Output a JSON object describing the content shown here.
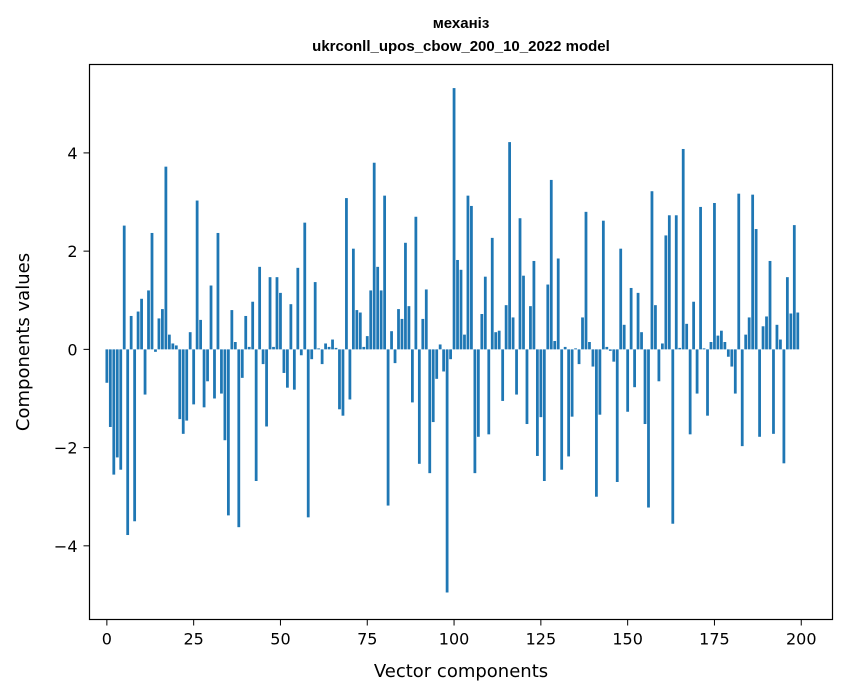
{
  "chart_data": {
    "type": "bar",
    "title_line1": "механіз",
    "title_line2": "ukrconll_upos_cbow_200_10_2022 model",
    "xlabel": "Vector components",
    "ylabel": "Components values",
    "xlim": [
      -5,
      209
    ],
    "ylim": [
      -5.5,
      5.8
    ],
    "xticks": [
      0,
      25,
      50,
      75,
      100,
      125,
      150,
      175,
      200
    ],
    "yticks": [
      -4,
      -2,
      0,
      2,
      4
    ],
    "bar_color": "#1f77b4",
    "grid": false,
    "values": [
      -0.68,
      -1.58,
      -2.55,
      -2.2,
      -2.45,
      2.52,
      -3.78,
      0.68,
      -3.5,
      0.77,
      1.03,
      -0.92,
      1.2,
      2.37,
      -0.05,
      0.63,
      0.82,
      3.72,
      0.3,
      0.12,
      0.08,
      -1.42,
      -1.72,
      -1.45,
      0.35,
      -1.12,
      3.03,
      0.6,
      -1.18,
      -0.65,
      1.3,
      -1.0,
      2.37,
      -0.9,
      -1.85,
      -3.38,
      0.8,
      0.15,
      -3.62,
      -0.58,
      0.68,
      0.05,
      0.97,
      -2.68,
      1.68,
      -0.3,
      -1.57,
      1.47,
      0.05,
      1.47,
      1.15,
      -0.48,
      -0.78,
      0.92,
      -0.82,
      1.66,
      -0.12,
      2.58,
      -3.42,
      -0.2,
      1.37,
      0.02,
      -0.3,
      0.12,
      0.05,
      0.2,
      0.03,
      -1.22,
      -1.35,
      3.08,
      -1.02,
      2.05,
      0.8,
      0.75,
      0.05,
      0.27,
      1.2,
      3.8,
      1.68,
      1.2,
      3.13,
      -3.18,
      0.37,
      -0.28,
      0.82,
      0.62,
      2.17,
      0.88,
      -1.08,
      2.7,
      -2.33,
      0.62,
      1.22,
      -2.52,
      -1.48,
      -0.6,
      0.1,
      -0.45,
      -4.95,
      -0.2,
      5.32,
      1.82,
      1.62,
      0.3,
      3.13,
      2.92,
      -2.52,
      -1.78,
      0.72,
      1.48,
      -1.73,
      2.27,
      0.35,
      0.38,
      -1.05,
      0.9,
      4.22,
      0.65,
      -0.92,
      2.67,
      1.5,
      -1.52,
      0.88,
      1.8,
      -2.17,
      -1.38,
      -2.68,
      1.32,
      3.45,
      0.17,
      1.85,
      -2.45,
      0.05,
      -2.18,
      -1.37,
      0.02,
      -0.3,
      0.65,
      2.8,
      0.15,
      -0.35,
      -3.0,
      -1.33,
      2.62,
      0.05,
      -0.03,
      -0.25,
      -2.7,
      2.05,
      0.5,
      -1.27,
      1.25,
      -0.77,
      1.15,
      0.35,
      -1.52,
      -3.22,
      3.22,
      0.9,
      -0.65,
      0.12,
      2.32,
      2.73,
      -3.55,
      2.73,
      0.03,
      4.08,
      0.52,
      -1.73,
      0.97,
      -0.9,
      2.9,
      0.02,
      -1.35,
      0.15,
      2.98,
      0.28,
      0.38,
      0.15,
      -0.15,
      -0.35,
      -0.9,
      3.17,
      -1.97,
      0.3,
      0.65,
      3.15,
      2.45,
      -1.78,
      0.47,
      0.67,
      1.8,
      -1.72,
      0.5,
      0.2,
      -2.32,
      1.47,
      0.73,
      2.53,
      0.75
    ]
  }
}
